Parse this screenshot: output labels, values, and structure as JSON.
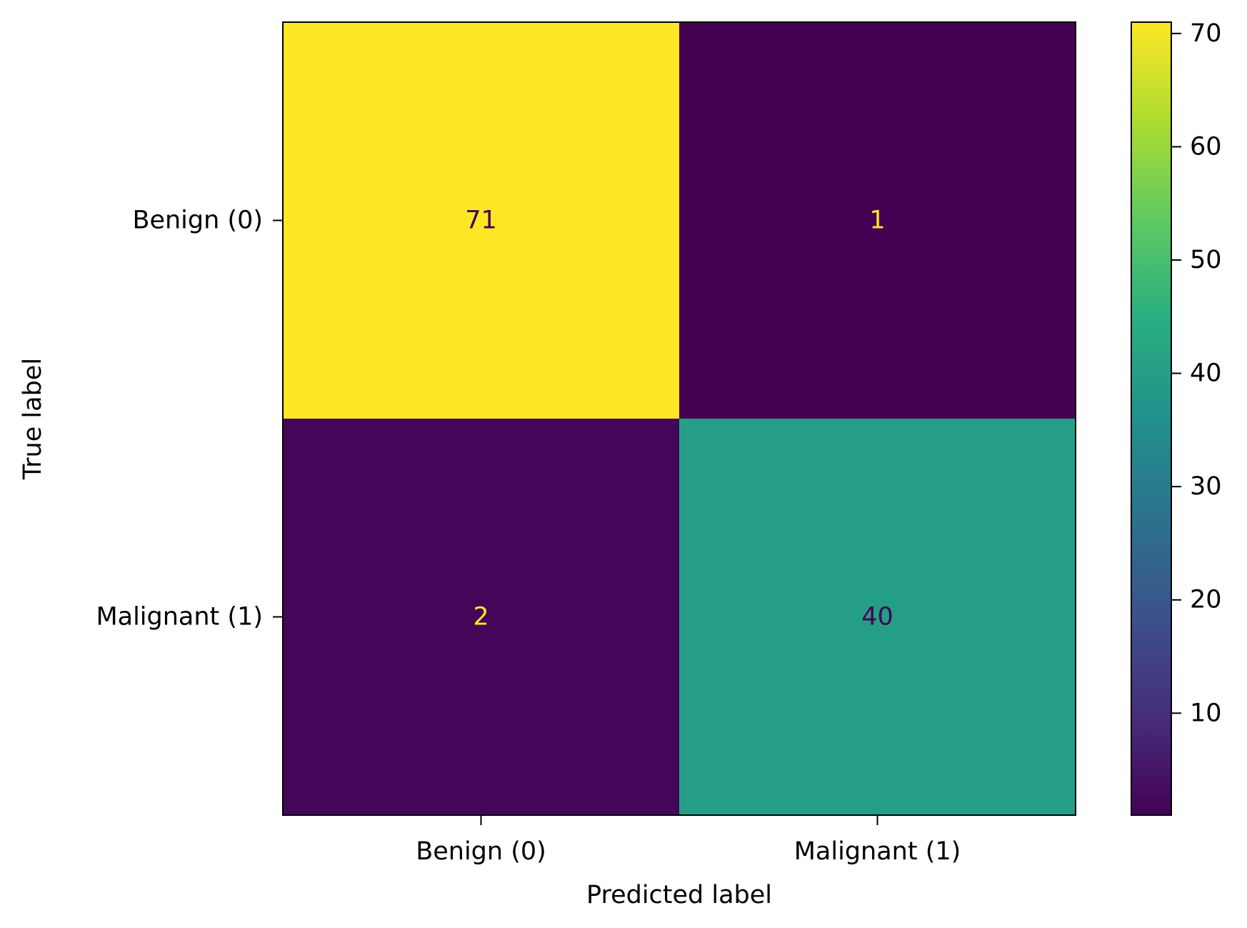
{
  "chart_data": {
    "type": "heatmap",
    "xlabel": "Predicted label",
    "ylabel": "True label",
    "x_categories": [
      "Benign (0)",
      "Malignant (1)"
    ],
    "y_categories": [
      "Benign (0)",
      "Malignant (1)"
    ],
    "matrix": [
      [
        71,
        1
      ],
      [
        2,
        40
      ]
    ],
    "colormap": "viridis",
    "colorbar": {
      "min": 1,
      "max": 71,
      "ticks": [
        10,
        20,
        30,
        40,
        50,
        60,
        70
      ]
    },
    "text_colors": {
      "on_light": "#440154",
      "on_dark": "#fde725"
    }
  }
}
